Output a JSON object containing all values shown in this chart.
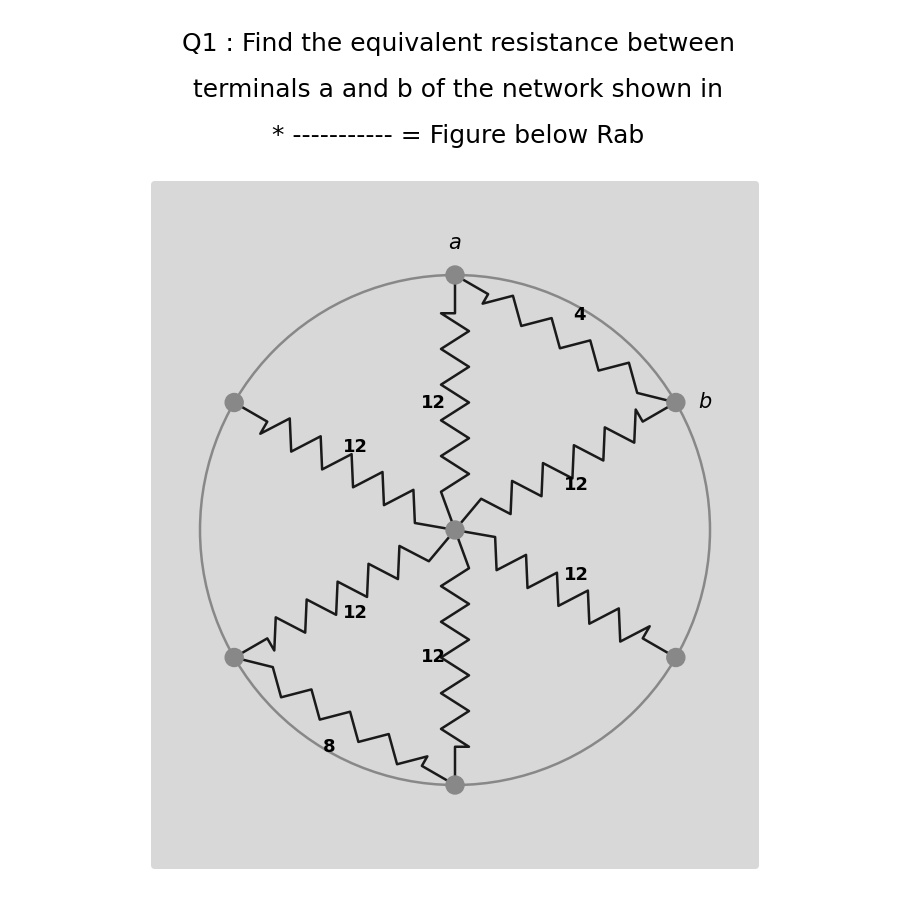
{
  "title_line1": "Q1 : Find the equivalent resistance between",
  "title_line2": "terminals a and b of the network shown in",
  "title_line3": "* ----------- = Figure below Rab",
  "title_fontsize": 18,
  "bg_color": "#d8d8d8",
  "outer_bg": "#ffffff",
  "node_color": "#888888",
  "line_color": "#1a1a1a",
  "circle_color": "#888888",
  "label_a": "a",
  "label_b": "b",
  "spoke_labels": [
    "12",
    "12",
    "12",
    "12",
    "12",
    "12"
  ],
  "outer_res_ab": "4",
  "outer_res_bl": "8"
}
